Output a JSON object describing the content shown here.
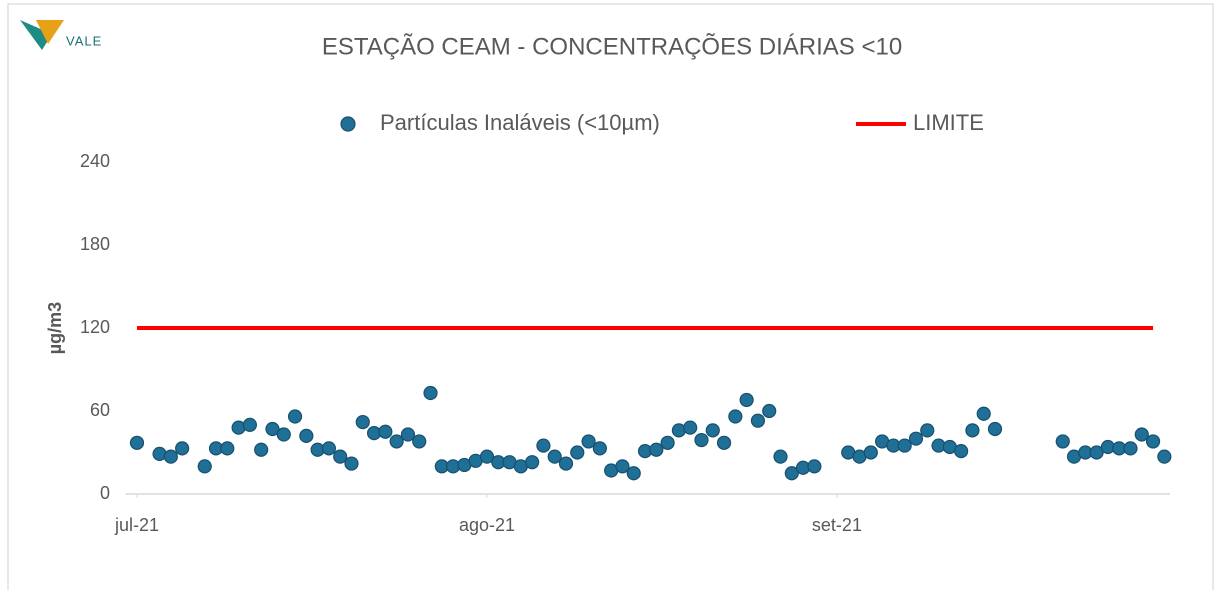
{
  "chart_data": {
    "type": "scatter",
    "logo": "VALE",
    "title": "ESTAÇÃO CEAM - CONCENTRAÇÕES DIÁRIAS <10",
    "ylabel": "µg/m3",
    "xlim": [
      -1,
      91.5
    ],
    "xticks": [
      {
        "value": 0,
        "label": "jul-21"
      },
      {
        "value": 31,
        "label": "ago-21"
      },
      {
        "value": 62,
        "label": "set-21"
      }
    ],
    "ylim": [
      0,
      240
    ],
    "yticks": [
      0,
      60,
      120,
      180,
      240
    ],
    "grid": false,
    "legend": "top",
    "series": [
      {
        "name": "Partículas Inaláveis (<10µm)",
        "color": "#1f6f96",
        "kind": "points",
        "x": [
          0,
          2,
          3,
          4,
          6,
          7,
          8,
          9,
          10,
          11,
          12,
          13,
          14,
          15,
          16,
          17,
          18,
          19,
          20,
          21,
          22,
          23,
          24,
          25,
          26,
          27,
          28,
          29,
          30,
          31,
          32,
          33,
          34,
          35,
          36,
          37,
          38,
          39,
          40,
          41,
          42,
          43,
          44,
          45,
          46,
          47,
          48,
          49,
          50,
          51,
          52,
          53,
          54,
          55,
          56,
          57,
          58,
          59,
          60,
          63,
          64,
          65,
          66,
          67,
          68,
          69,
          70,
          71,
          72,
          73,
          74,
          75,
          76,
          82,
          83,
          84,
          85,
          86,
          87,
          88,
          89,
          90,
          91
        ],
        "values": [
          37,
          29,
          27,
          33,
          20,
          33,
          33,
          48,
          50,
          32,
          47,
          43,
          56,
          42,
          32,
          33,
          27,
          22,
          52,
          44,
          45,
          38,
          43,
          38,
          73,
          20,
          20,
          21,
          24,
          27,
          23,
          23,
          20,
          23,
          35,
          27,
          22,
          30,
          38,
          33,
          17,
          20,
          15,
          31,
          32,
          37,
          46,
          48,
          39,
          46,
          37,
          56,
          68,
          53,
          60,
          27,
          15,
          19,
          20,
          30,
          27,
          30,
          38,
          35,
          35,
          40,
          46,
          35,
          34,
          31,
          46,
          58,
          47,
          38,
          27,
          30,
          30,
          34,
          33,
          33,
          43,
          38,
          27
        ]
      },
      {
        "name": "LIMITE",
        "color": "#ff0000",
        "kind": "line",
        "x": [
          0,
          90
        ],
        "values": [
          120,
          120
        ]
      }
    ]
  }
}
